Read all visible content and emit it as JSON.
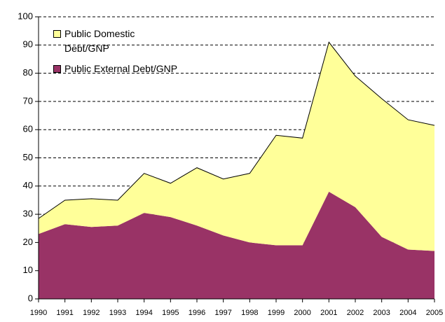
{
  "chart_data": {
    "type": "stacked-area",
    "categories": [
      "1990",
      "1991",
      "1992",
      "1993",
      "1994",
      "1995",
      "1996",
      "1997",
      "1998",
      "1999",
      "2000",
      "2001",
      "2002",
      "2003",
      "2004",
      "2005"
    ],
    "series": [
      {
        "name": "Public External Debt/GNP",
        "color": "#993366",
        "values": [
          23,
          26.5,
          25.5,
          26,
          30.5,
          29,
          26,
          22.5,
          20,
          19,
          19,
          38,
          32.5,
          22,
          17.5,
          17
        ]
      },
      {
        "name": "Public Domestic Debt/GNP",
        "color": "#ffff99",
        "values": [
          5.5,
          8.5,
          10,
          9,
          14,
          12,
          20.5,
          20,
          24.5,
          39,
          38,
          53,
          46.5,
          49,
          46,
          44.5
        ]
      }
    ],
    "ylim": [
      0,
      100
    ],
    "yticks": [
      0,
      10,
      20,
      30,
      40,
      50,
      60,
      70,
      80,
      90,
      100
    ],
    "grid": true
  }
}
